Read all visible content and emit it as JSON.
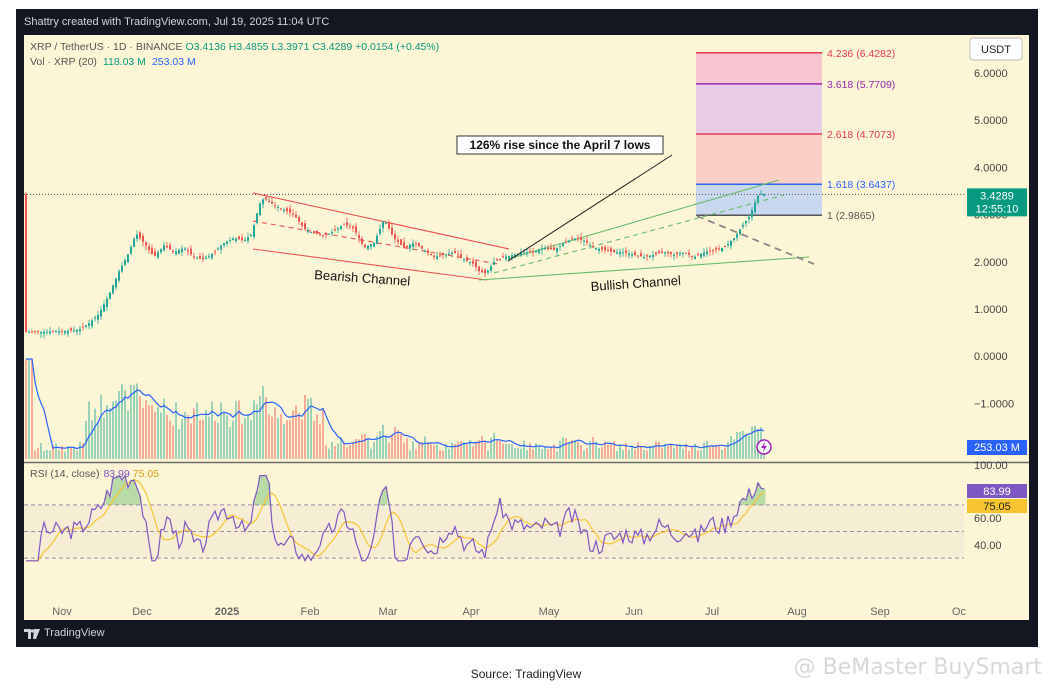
{
  "header": {
    "text": "Shattry created with TradingView.com, Jul 19, 2025 11:04 UTC"
  },
  "footer": {
    "brand": "TradingView"
  },
  "source": "Source: TradingView",
  "watermark": "@ BeMaster BuySmart",
  "colors": {
    "bg": "#fdf6d6",
    "up": "#26a69a",
    "down": "#ef5350",
    "fib_red": "#e53952",
    "fib_purple": "#9c27b0",
    "fib_blue": "#2962ff",
    "bull": "#66bb6a",
    "rsi": "#7e57c2",
    "rsi_ma": "#f7c530"
  },
  "chart_data": {
    "type": "candlestick",
    "symbol_line": {
      "title": "XRP / TetherUS · 1D · BINANCE",
      "o": "O3.4136",
      "h": "H3.4855",
      "l": "L3.3971",
      "c": "C3.4289",
      "chg": "+0.0154 (+0.45%)"
    },
    "vol_line": {
      "label": "Vol · XRP (20)",
      "v1": "118.03 M",
      "v2": "253.03 M"
    },
    "currency": "USDT",
    "price_axis": [
      "6.0000",
      "5.0000",
      "4.0000",
      "3.0000",
      "2.0000",
      "1.0000",
      "0.0000",
      "−1.0000"
    ],
    "price_ticks": [
      6,
      5,
      4,
      3,
      2,
      1,
      0,
      -1
    ],
    "ylim": [
      -2.1,
      6.9
    ],
    "last_price": "3.4289",
    "countdown": "12:55:10",
    "last_volume": "253.03 M",
    "x_labels": [
      "Nov",
      "Dec",
      "2025",
      "Feb",
      "Mar",
      "Apr",
      "May",
      "Jun",
      "Jul",
      "Aug",
      "Sep",
      "Oc"
    ],
    "fib_levels": [
      {
        "label": "4.236 (6.4282)",
        "value": 6.4282,
        "color": "#e53952"
      },
      {
        "label": "3.618 (5.7709)",
        "value": 5.7709,
        "color": "#9c27b0"
      },
      {
        "label": "2.618 (4.7073)",
        "value": 4.7073,
        "color": "#e53952"
      },
      {
        "label": "1.618 (3.6437)",
        "value": 3.6437,
        "color": "#2962ff"
      },
      {
        "label": "1 (2.9865)",
        "value": 2.9865,
        "color": "#555555"
      }
    ],
    "annotations": [
      {
        "text": "126% rise since the April 7 lows"
      },
      {
        "text": "Bearish Channel"
      },
      {
        "text": "Bullish Channel"
      }
    ],
    "price_path": [
      [
        0,
        0.51
      ],
      [
        20,
        0.52
      ],
      [
        40,
        0.53
      ],
      [
        55,
        0.56
      ],
      [
        65,
        0.7
      ],
      [
        75,
        0.9
      ],
      [
        85,
        1.3
      ],
      [
        95,
        1.8
      ],
      [
        105,
        2.2
      ],
      [
        112,
        2.6
      ],
      [
        120,
        2.4
      ],
      [
        130,
        2.1
      ],
      [
        140,
        2.35
      ],
      [
        150,
        2.2
      ],
      [
        160,
        2.3
      ],
      [
        170,
        2.1
      ],
      [
        180,
        2.05
      ],
      [
        190,
        2.2
      ],
      [
        200,
        2.4
      ],
      [
        210,
        2.5
      ],
      [
        220,
        2.45
      ],
      [
        228,
        2.6
      ],
      [
        235,
        3.2
      ],
      [
        240,
        3.35
      ],
      [
        250,
        3.2
      ],
      [
        260,
        3.1
      ],
      [
        270,
        3.0
      ],
      [
        280,
        2.7
      ],
      [
        290,
        2.6
      ],
      [
        300,
        2.55
      ],
      [
        310,
        2.65
      ],
      [
        320,
        2.8
      ],
      [
        330,
        2.7
      ],
      [
        340,
        2.3
      ],
      [
        350,
        2.4
      ],
      [
        360,
        2.9
      ],
      [
        370,
        2.5
      ],
      [
        380,
        2.3
      ],
      [
        390,
        2.4
      ],
      [
        400,
        2.25
      ],
      [
        410,
        2.1
      ],
      [
        420,
        2.15
      ],
      [
        430,
        2.2
      ],
      [
        440,
        2.05
      ],
      [
        450,
        1.95
      ],
      [
        455,
        1.8
      ],
      [
        462,
        1.75
      ],
      [
        470,
        2.0
      ],
      [
        480,
        2.1
      ],
      [
        490,
        2.15
      ],
      [
        500,
        2.2
      ],
      [
        510,
        2.2
      ],
      [
        520,
        2.3
      ],
      [
        530,
        2.25
      ],
      [
        540,
        2.4
      ],
      [
        550,
        2.5
      ],
      [
        560,
        2.45
      ],
      [
        570,
        2.3
      ],
      [
        580,
        2.25
      ],
      [
        590,
        2.2
      ],
      [
        600,
        2.2
      ],
      [
        610,
        2.15
      ],
      [
        620,
        2.1
      ],
      [
        630,
        2.15
      ],
      [
        640,
        2.2
      ],
      [
        650,
        2.15
      ],
      [
        660,
        2.2
      ],
      [
        670,
        2.1
      ],
      [
        680,
        2.2
      ],
      [
        690,
        2.25
      ],
      [
        700,
        2.3
      ],
      [
        710,
        2.5
      ],
      [
        718,
        2.75
      ],
      [
        725,
        2.95
      ],
      [
        730,
        3.2
      ],
      [
        735,
        3.45
      ],
      [
        740,
        3.43
      ]
    ],
    "rsi": {
      "label": "RSI (14, close)",
      "value": "83.99",
      "ma": "75.05",
      "axis": [
        "100.00",
        "60.00",
        "40.00"
      ],
      "axis_values": [
        100,
        60,
        40
      ],
      "levels": [
        70,
        50,
        30
      ]
    }
  }
}
